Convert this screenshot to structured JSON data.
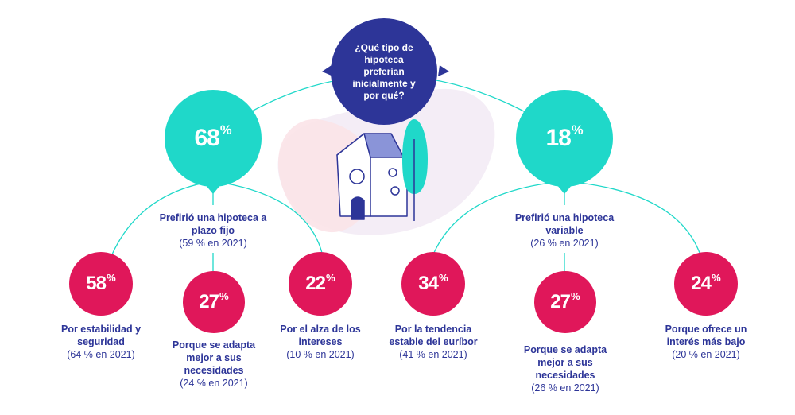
{
  "question": "¿Qué tipo de hipoteca preferían inicialmente y por qué?",
  "colors": {
    "navy": "#2d3598",
    "teal": "#1fd8c9",
    "pink": "#e0175a"
  },
  "branches": {
    "fixed": {
      "value": "68",
      "unit": "%",
      "label": "Prefirió una hipoteca a plazo fijo",
      "sub": "(59 % en 2021)",
      "reasons": [
        {
          "value": "58",
          "unit": "%",
          "label": "Por estabilidad y seguridad",
          "sub": "(64 % en 2021)"
        },
        {
          "value": "27",
          "unit": "%",
          "label": "Porque se adapta mejor a sus necesidades",
          "sub": "(24 % en 2021)"
        },
        {
          "value": "22",
          "unit": "%",
          "label": "Por el alza de los intereses",
          "sub": "(10 % en 2021)"
        }
      ]
    },
    "variable": {
      "value": "18",
      "unit": "%",
      "label": "Prefirió una hipoteca variable",
      "sub": "(26 % en 2021)",
      "reasons": [
        {
          "value": "34",
          "unit": "%",
          "label": "Por la tendencia estable del euríbor",
          "sub": "(41 % en 2021)"
        },
        {
          "value": "27",
          "unit": "%",
          "label": "Porque se adapta mejor a sus necesidades",
          "sub": "(26 % en 2021)"
        },
        {
          "value": "24",
          "unit": "%",
          "label": "Porque ofrece un interés más bajo",
          "sub": "(20 % en 2021)"
        }
      ]
    }
  }
}
